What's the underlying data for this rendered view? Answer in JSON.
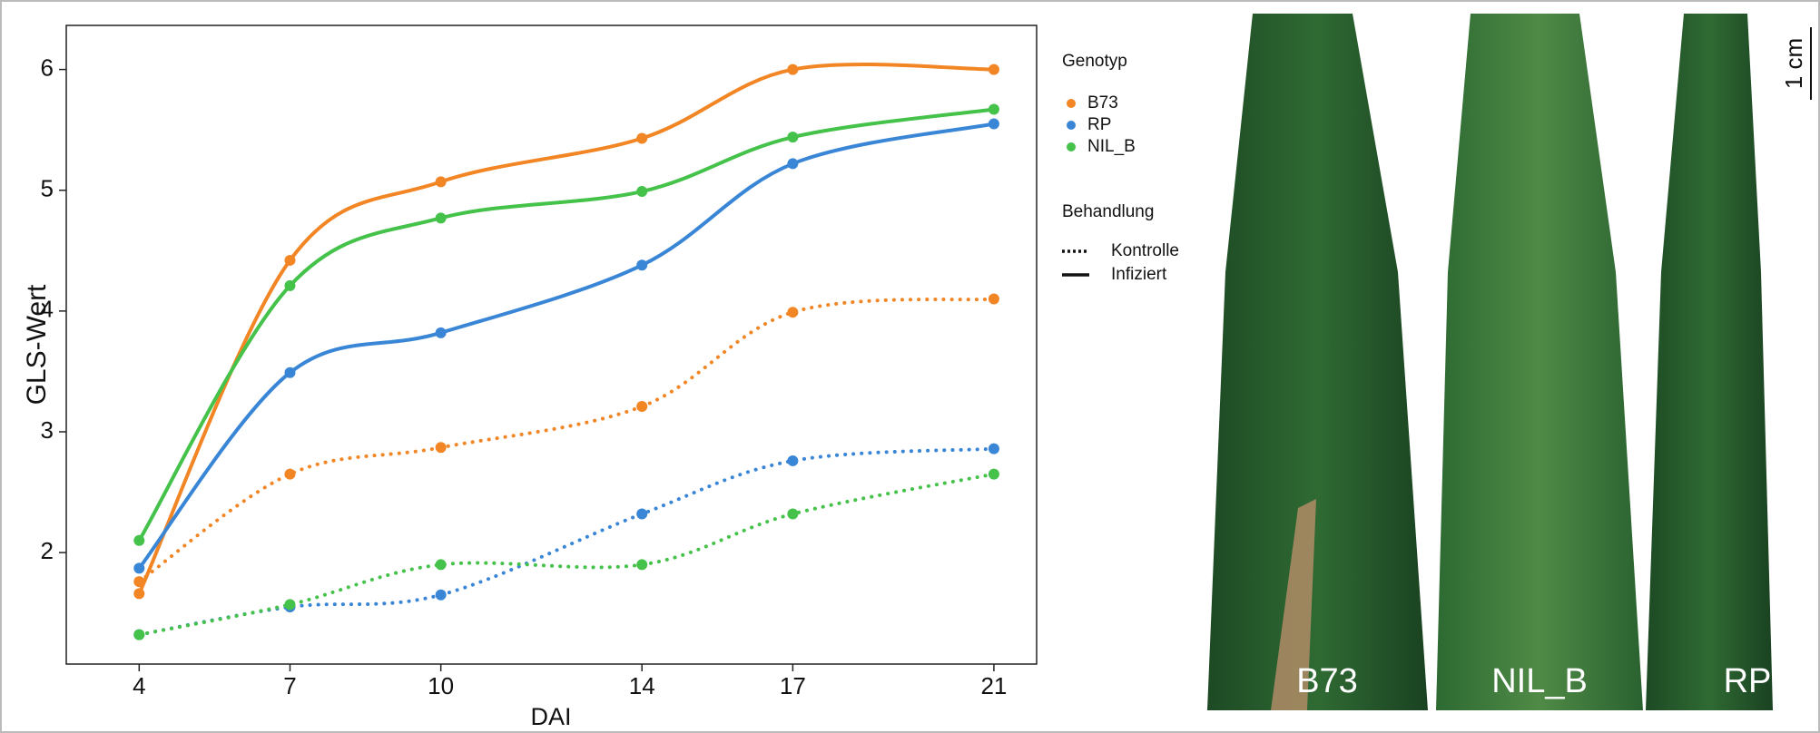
{
  "chart_data": {
    "type": "line",
    "x_label": "DAI",
    "y_label": "GLS-Wert",
    "x": [
      4,
      7,
      10,
      14,
      17,
      21
    ],
    "xlim": [
      2.55,
      21.85
    ],
    "xticks": [
      4,
      7,
      10,
      14,
      17,
      21
    ],
    "ylim": [
      1.077,
      6.365
    ],
    "yticks": [
      2,
      3,
      4,
      5,
      6
    ],
    "series": [
      {
        "name": "B73",
        "color": "#f28524",
        "treatment": "Infiziert",
        "values": [
          1.66,
          4.42,
          5.07,
          5.43,
          6.0,
          6.0
        ]
      },
      {
        "name": "RP",
        "color": "#3a86d6",
        "treatment": "Infiziert",
        "values": [
          1.87,
          3.49,
          3.82,
          4.38,
          5.22,
          5.55
        ]
      },
      {
        "name": "NIL_B",
        "color": "#44c24a",
        "treatment": "Infiziert",
        "values": [
          2.1,
          4.21,
          4.77,
          4.99,
          5.44,
          5.67
        ]
      },
      {
        "name": "B73",
        "color": "#f28524",
        "treatment": "Kontrolle",
        "values": [
          1.76,
          2.65,
          2.87,
          3.21,
          3.99,
          4.1
        ]
      },
      {
        "name": "RP",
        "color": "#3a86d6",
        "treatment": "Kontrolle",
        "values": [
          1.32,
          1.55,
          1.65,
          2.32,
          2.76,
          2.86
        ]
      },
      {
        "name": "NIL_B",
        "color": "#44c24a",
        "treatment": "Kontrolle",
        "values": [
          1.32,
          1.57,
          1.9,
          1.9,
          2.32,
          2.65
        ]
      }
    ],
    "legend": {
      "genotype_title": "Genotyp",
      "treatment_title": "Behandlung",
      "treatments": [
        {
          "name": "Kontrolle",
          "dash": "dotted"
        },
        {
          "name": "Infiziert",
          "dash": "solid"
        }
      ]
    }
  },
  "photo": {
    "labels": [
      "B73",
      "NIL_B",
      "RP"
    ],
    "scale_bar": "1 cm"
  }
}
